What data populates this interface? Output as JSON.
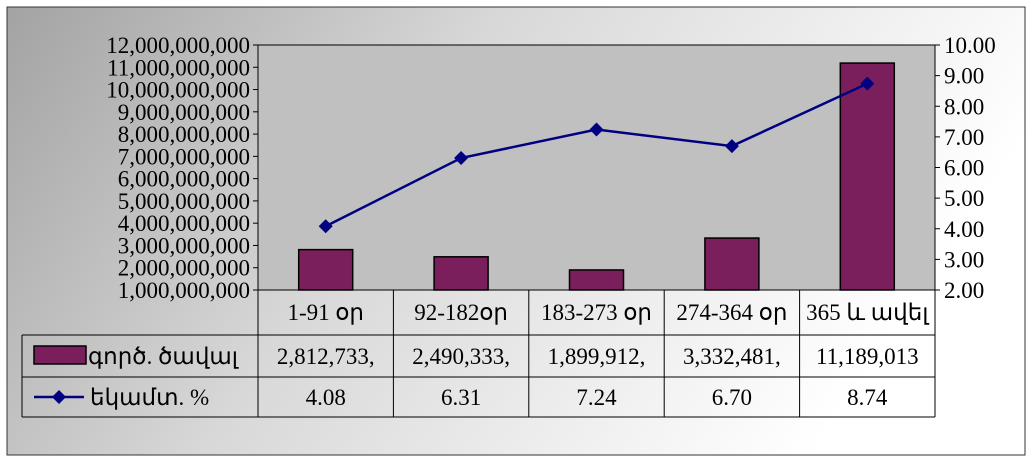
{
  "chart_data": {
    "type": "bar+line",
    "categories": [
      "1-91 օր",
      "92-182օր",
      "183-273 օր",
      "274-364 օր",
      "365 և ավել"
    ],
    "y_left": {
      "ylim": [
        1000000000,
        12000000000
      ],
      "ticks": [
        "1,000,000,000",
        "2,000,000,000",
        "3,000,000,000",
        "4,000,000,000",
        "5,000,000,000",
        "6,000,000,000",
        "7,000,000,000",
        "8,000,000,000",
        "9,000,000,000",
        "10,000,000,000",
        "11,000,000,000",
        "12,000,000,000"
      ]
    },
    "y_right": {
      "ylim": [
        2,
        10
      ],
      "ticks": [
        "2.00",
        "3.00",
        "4.00",
        "5.00",
        "6.00",
        "7.00",
        "8.00",
        "9.00",
        "10.00"
      ]
    },
    "series": [
      {
        "name": "գործ. ծավալ",
        "type": "bar",
        "axis": "left",
        "color": "#7a1f5c",
        "values": [
          2812733000,
          2490333000,
          1899912000,
          3332481000,
          11189013000
        ],
        "table_labels": [
          "2,812,733,",
          "2,490,333,",
          "1,899,912,",
          "3,332,481,",
          "11,189,013"
        ]
      },
      {
        "name": "եկամտ. %",
        "type": "line",
        "axis": "right",
        "color": "#000080",
        "values": [
          4.08,
          6.31,
          7.24,
          6.7,
          8.74
        ],
        "table_labels": [
          "4.08",
          "6.31",
          "7.24",
          "6.70",
          "8.74"
        ]
      }
    ],
    "plot_background": "#c0c0c0",
    "legend": "data-table"
  }
}
